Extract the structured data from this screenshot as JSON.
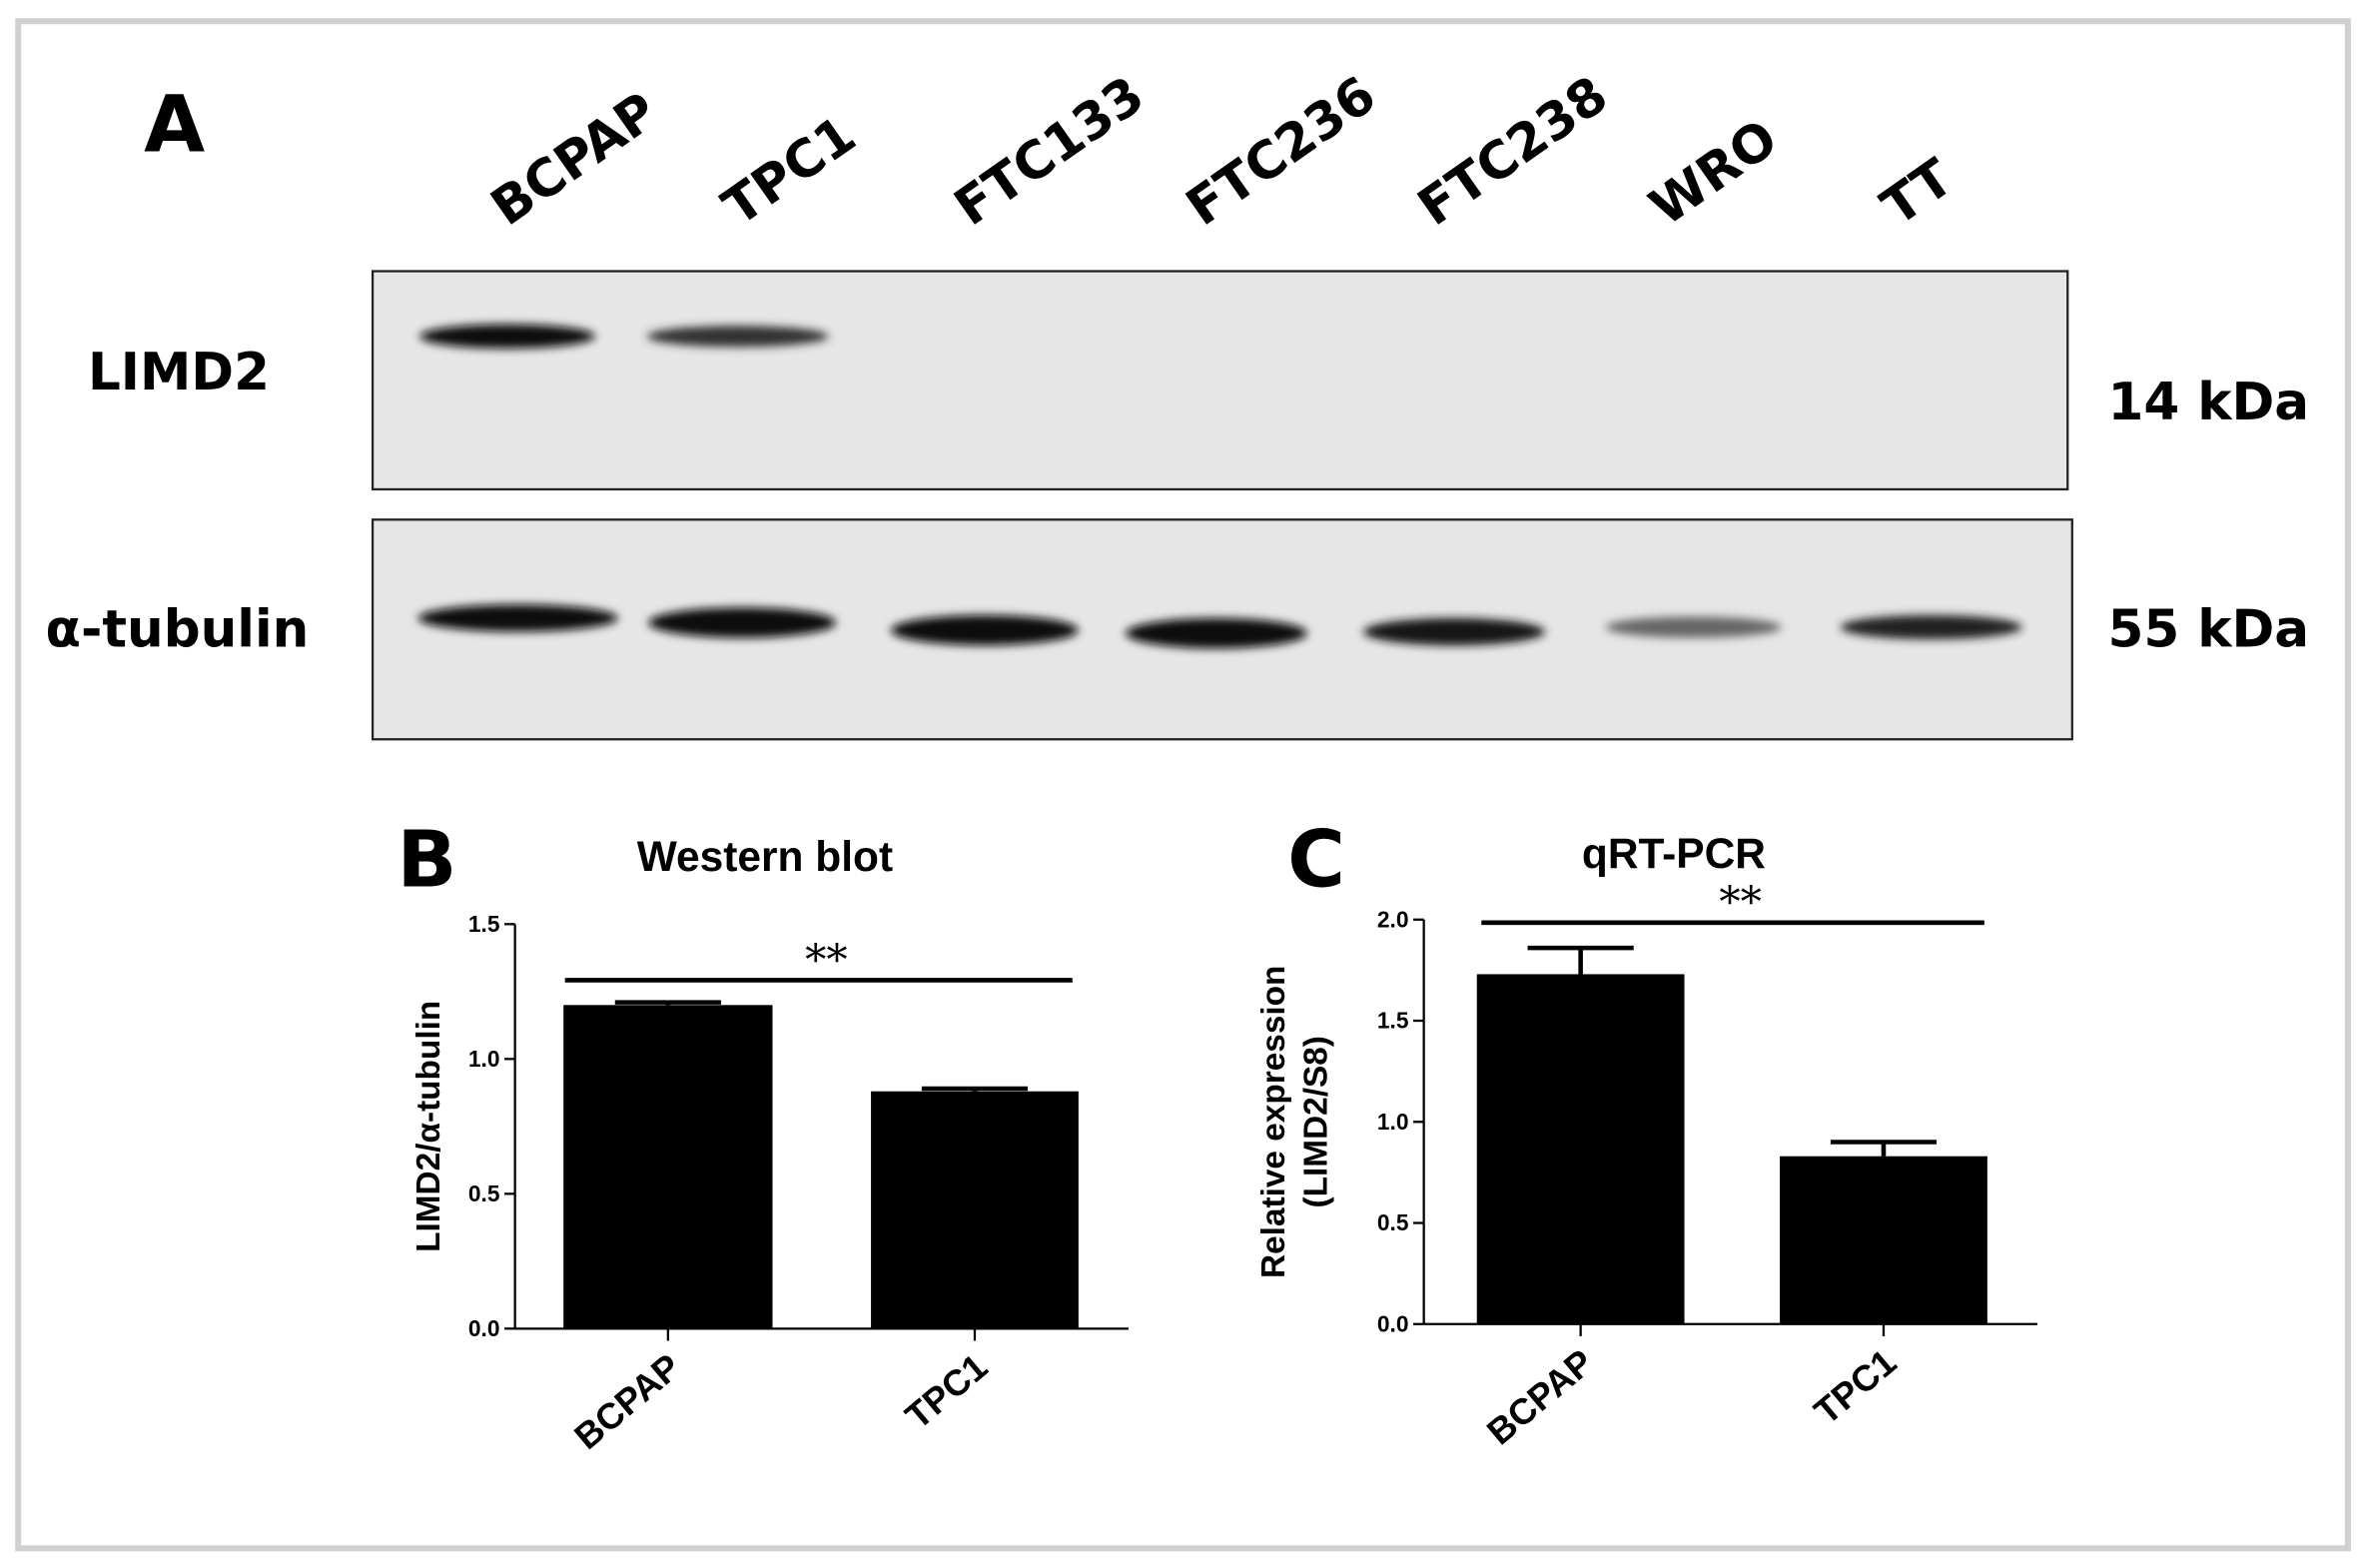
{
  "blot": {
    "label": "A",
    "lanes": [
      "BCPAP",
      "TPC1",
      "FTC133",
      "FTC236",
      "FTC238",
      "WRO",
      "TT"
    ],
    "rows": [
      {
        "name": "LIMD2",
        "size": "14 kDa"
      },
      {
        "name": "α-tubulin",
        "size": "55 kDa"
      }
    ]
  },
  "chart_data": [
    {
      "type": "bar",
      "label": "B",
      "title": "Western blot",
      "ylabel": [
        "LIMD2/α-tubulin"
      ],
      "categories": [
        "BCPAP",
        "TPC1"
      ],
      "values": [
        1.2,
        0.88
      ],
      "errors": [
        0.01,
        0.01
      ],
      "color": "#000000",
      "ylim": [
        0,
        1.5
      ],
      "yticks": [
        {
          "value": 0,
          "label": "0.0"
        },
        0.5,
        {
          "value": 1,
          "label": "1.0"
        },
        1.5
      ],
      "annotation": "**"
    },
    {
      "type": "bar",
      "label": "C",
      "title": "qRT-PCR",
      "ylabel": [
        "Relative expression",
        "(LIMD2/S8)"
      ],
      "categories": [
        "BCPAP",
        "TPC1"
      ],
      "values": [
        1.73,
        0.83
      ],
      "errors": [
        0.13,
        0.07
      ],
      "color": "#000000",
      "ylim": [
        0,
        2
      ],
      "yticks": [
        {
          "value": 0,
          "label": "0.0"
        },
        0.5,
        {
          "value": 1,
          "label": "1.0"
        },
        1.5,
        {
          "value": 2,
          "label": "2.0"
        }
      ],
      "annotation": "**"
    }
  ]
}
